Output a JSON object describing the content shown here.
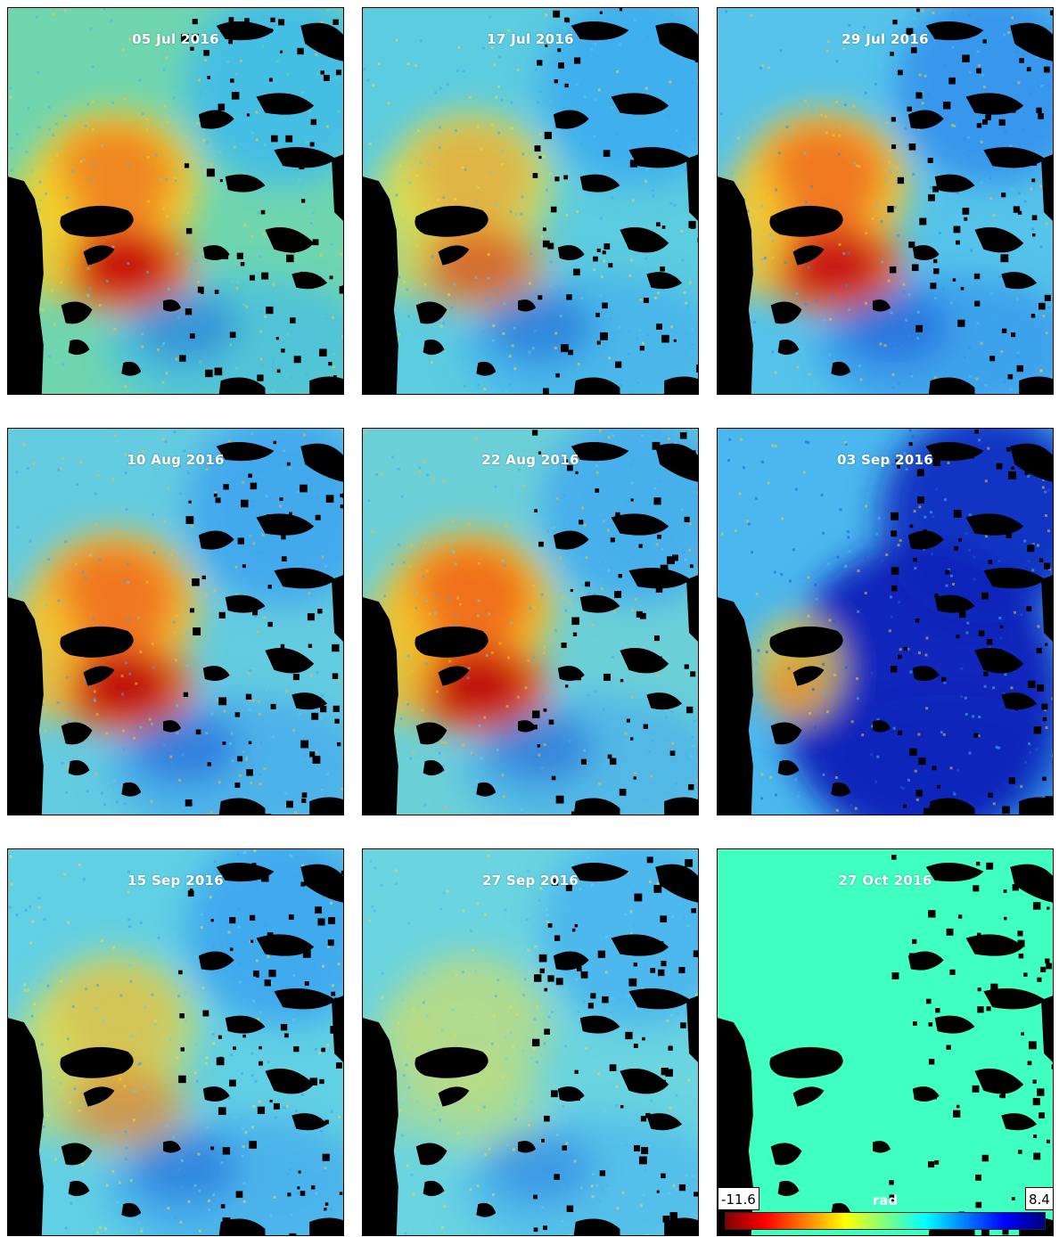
{
  "panels": [
    {
      "date": "05 Jul 2016",
      "palette": [
        "#6fd6b0",
        "#3cb8f0",
        "#f4d02a",
        "#f08020",
        "#c81010",
        "#1e6ad8"
      ],
      "mode": "strong"
    },
    {
      "date": "17 Jul 2016",
      "palette": [
        "#5ccce0",
        "#3aa8f0",
        "#e8e040",
        "#f0a030",
        "#d85020",
        "#1c58d0"
      ],
      "mode": "medium"
    },
    {
      "date": "29 Jul 2016",
      "palette": [
        "#56c4ea",
        "#2f8cec",
        "#f4c830",
        "#f07020",
        "#c81818",
        "#1a4cd0"
      ],
      "mode": "strong"
    },
    {
      "date": "10 Aug 2016",
      "palette": [
        "#64cce0",
        "#3ca0f0",
        "#f4c030",
        "#f07020",
        "#c01010",
        "#1a50d0"
      ],
      "mode": "strong"
    },
    {
      "date": "22 Aug 2016",
      "palette": [
        "#6cd0d8",
        "#40a8f0",
        "#f4c028",
        "#f06818",
        "#c01010",
        "#1c58d0"
      ],
      "mode": "strong"
    },
    {
      "date": "03 Sep 2016",
      "palette": [
        "#4ab8ee",
        "#1a5ad8",
        "#f0d030",
        "#f08828",
        "#d03010",
        "#0a20b8"
      ],
      "mode": "blue"
    },
    {
      "date": "15 Sep 2016",
      "palette": [
        "#62d0e4",
        "#3aa0f0",
        "#ece040",
        "#f0b030",
        "#e07830",
        "#1c60d4"
      ],
      "mode": "weak"
    },
    {
      "date": "27 Sep 2016",
      "palette": [
        "#6ad4e0",
        "#46b0f0",
        "#e8e04a",
        "#d8e060",
        "#c8e070",
        "#2a78e0"
      ],
      "mode": "faint"
    },
    {
      "date": "27 Oct 2016",
      "palette": [
        "#3fffc1",
        "#3fffc1",
        "#3fffc1",
        "#3fffc1",
        "#3fffc1",
        "#3fffc1"
      ],
      "mode": "flat"
    }
  ],
  "colorbar": {
    "min": "-11.6",
    "max": "8.4",
    "unit": "rad",
    "colors": [
      "#800000",
      "#ff0000",
      "#ff8000",
      "#ffff00",
      "#80ff80",
      "#00ffff",
      "#0080ff",
      "#0000ff",
      "#000080"
    ]
  }
}
